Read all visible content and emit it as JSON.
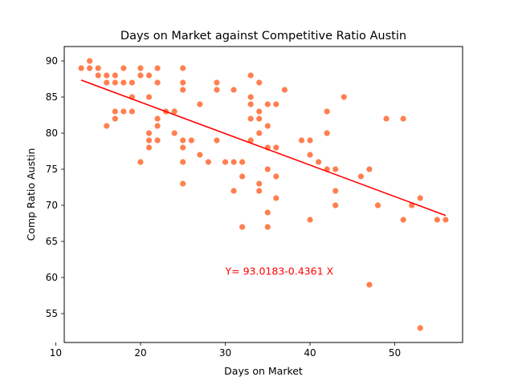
{
  "chart_data": {
    "type": "scatter",
    "title": "Days on Market against Competitive Ratio Austin",
    "xlabel": "Days on Market",
    "ylabel": "Comp Ratio Austin",
    "xlim": [
      11,
      58
    ],
    "ylim": [
      51,
      92
    ],
    "xticks": [
      10,
      20,
      30,
      40,
      50
    ],
    "yticks": [
      55,
      60,
      65,
      70,
      75,
      80,
      85,
      90
    ],
    "grid": false,
    "colors": {
      "points": "#ff7f50",
      "trendline": "#ff0000",
      "annotation": "#ff0000",
      "axes": "#000000"
    },
    "annotation": {
      "text": "Y=  93.0183-0.4361 X",
      "x": 30,
      "y": 60.4
    },
    "trendline": {
      "intercept": 93.0183,
      "slope": -0.4361,
      "x_range": [
        13,
        56
      ]
    },
    "points": [
      [
        13,
        89
      ],
      [
        14,
        90
      ],
      [
        14,
        89
      ],
      [
        15,
        89
      ],
      [
        15,
        88
      ],
      [
        16,
        88
      ],
      [
        16,
        87
      ],
      [
        16,
        81
      ],
      [
        17,
        88
      ],
      [
        17,
        87
      ],
      [
        17,
        83
      ],
      [
        17,
        82
      ],
      [
        18,
        89
      ],
      [
        18,
        87
      ],
      [
        18,
        83
      ],
      [
        19,
        87
      ],
      [
        19,
        85
      ],
      [
        19,
        83
      ],
      [
        20,
        89
      ],
      [
        20,
        88
      ],
      [
        20,
        76
      ],
      [
        21,
        88
      ],
      [
        21,
        85
      ],
      [
        21,
        80
      ],
      [
        21,
        79
      ],
      [
        21,
        78
      ],
      [
        22,
        89
      ],
      [
        22,
        87
      ],
      [
        22,
        82
      ],
      [
        22,
        81
      ],
      [
        22,
        79
      ],
      [
        23,
        83
      ],
      [
        24,
        83
      ],
      [
        24,
        80
      ],
      [
        25,
        89
      ],
      [
        25,
        87
      ],
      [
        25,
        86
      ],
      [
        25,
        79
      ],
      [
        25,
        78
      ],
      [
        25,
        76
      ],
      [
        25,
        73
      ],
      [
        26,
        79
      ],
      [
        27,
        84
      ],
      [
        27,
        77
      ],
      [
        28,
        76
      ],
      [
        29,
        87
      ],
      [
        29,
        86
      ],
      [
        29,
        79
      ],
      [
        30,
        76
      ],
      [
        31,
        86
      ],
      [
        31,
        76
      ],
      [
        31,
        72
      ],
      [
        32,
        76
      ],
      [
        32,
        74
      ],
      [
        32,
        67
      ],
      [
        33,
        88
      ],
      [
        33,
        85
      ],
      [
        33,
        84
      ],
      [
        33,
        82
      ],
      [
        33,
        79
      ],
      [
        34,
        87
      ],
      [
        34,
        83
      ],
      [
        34,
        82
      ],
      [
        34,
        80
      ],
      [
        34,
        73
      ],
      [
        34,
        72
      ],
      [
        35,
        84
      ],
      [
        35,
        81
      ],
      [
        35,
        78
      ],
      [
        35,
        75
      ],
      [
        35,
        69
      ],
      [
        35,
        67
      ],
      [
        36,
        84
      ],
      [
        36,
        78
      ],
      [
        36,
        74
      ],
      [
        36,
        71
      ],
      [
        37,
        86
      ],
      [
        39,
        79
      ],
      [
        40,
        79
      ],
      [
        40,
        77
      ],
      [
        40,
        68
      ],
      [
        41,
        76
      ],
      [
        42,
        83
      ],
      [
        42,
        80
      ],
      [
        42,
        75
      ],
      [
        43,
        75
      ],
      [
        43,
        72
      ],
      [
        43,
        70
      ],
      [
        44,
        85
      ],
      [
        46,
        74
      ],
      [
        47,
        75
      ],
      [
        47,
        59
      ],
      [
        48,
        70
      ],
      [
        49,
        82
      ],
      [
        51,
        82
      ],
      [
        51,
        68
      ],
      [
        52,
        70
      ],
      [
        53,
        71
      ],
      [
        53,
        53
      ],
      [
        55,
        68
      ],
      [
        56,
        68
      ]
    ]
  }
}
